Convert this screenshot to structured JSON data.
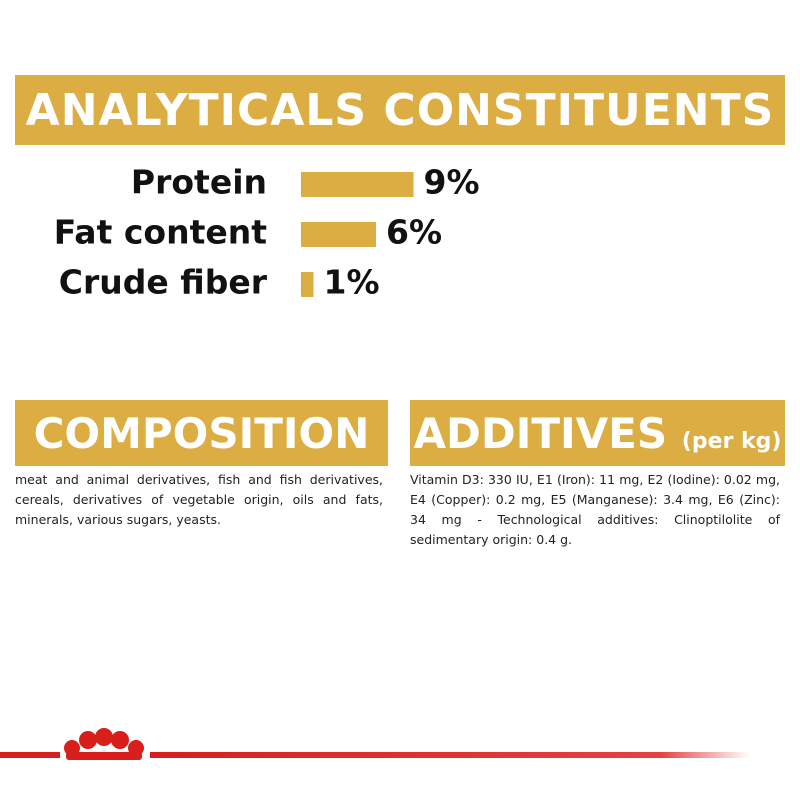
{
  "chart_data": {
    "type": "bar",
    "title": "ANALYTICALS CONSTITUENTS",
    "categories": [
      "Protein",
      "Fat content",
      "Crude fiber"
    ],
    "values": [
      9,
      6,
      1
    ],
    "value_labels": [
      "9%",
      "6%",
      "1%"
    ],
    "color": "#dcad42"
  },
  "composition": {
    "title": "COMPOSITION",
    "text": "meat and animal derivatives, fish and fish derivatives, cereals, derivatives of vegetable origin, oils and fats, minerals, various sugars, yeasts."
  },
  "additives": {
    "title": "ADDITIVES",
    "unit": "(per kg)",
    "text": "Vitamin D3: 330 IU, E1 (Iron): 11 mg, E2 (Iodine): 0.02 mg, E4 (Copper): 0.2 mg, E5 (Manganese): 3.4 mg, E6 (Zinc): 34 mg - Technological additives: Clinoptilolite of sedimentary origin: 0.4 g."
  }
}
